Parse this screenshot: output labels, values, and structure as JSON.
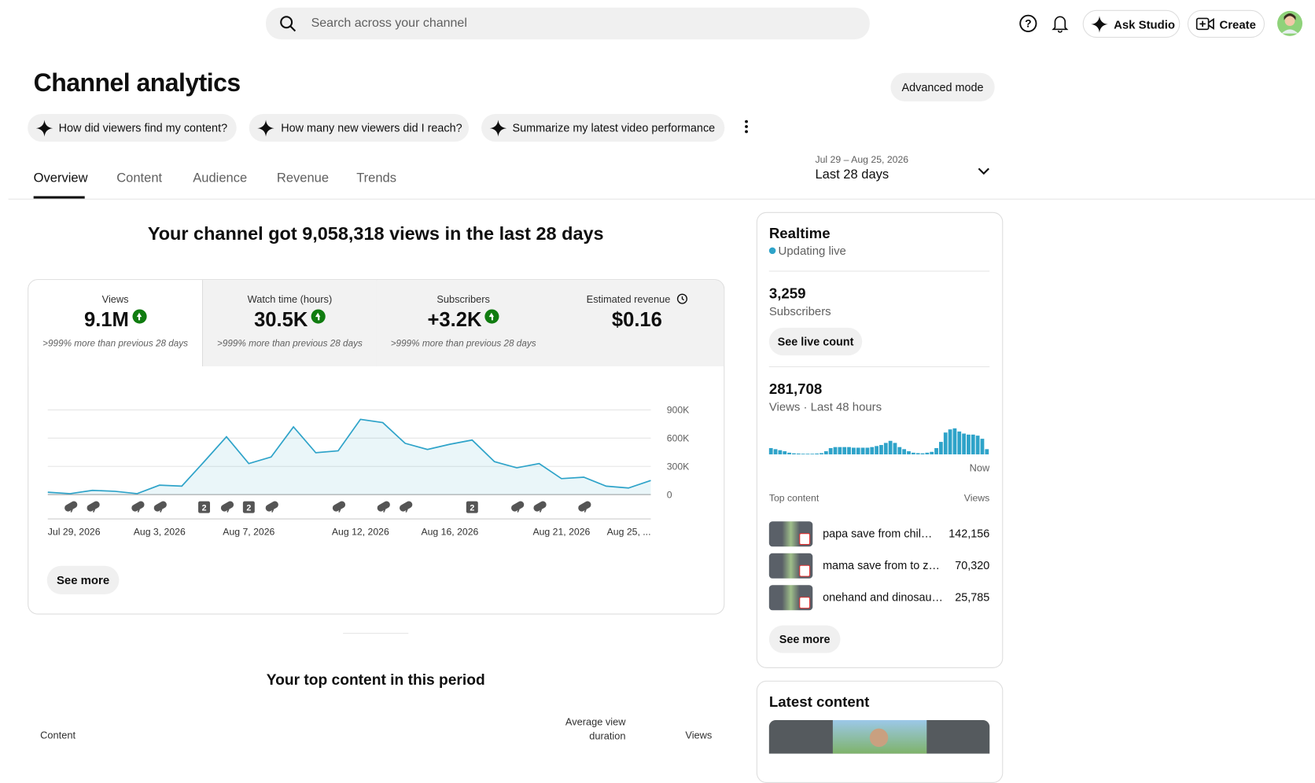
{
  "header": {
    "search_placeholder": "Search across your channel",
    "ask_studio": "Ask Studio",
    "create": "Create"
  },
  "page": {
    "title": "Channel analytics",
    "advanced_mode": "Advanced mode",
    "prompts": [
      "How did viewers find my content?",
      "How many new viewers did I reach?",
      "Summarize my latest video performance"
    ],
    "tabs": [
      "Overview",
      "Content",
      "Audience",
      "Revenue",
      "Trends"
    ],
    "date_range": {
      "dates": "Jul 29 – Aug 25, 2026",
      "label": "Last 28 days"
    }
  },
  "overview": {
    "headline": "Your channel got 9,058,318 views in the last 28 days",
    "metrics": [
      {
        "label": "Views",
        "value": "9.1M",
        "change": ">999% more than previous 28 days"
      },
      {
        "label": "Watch time (hours)",
        "value": "30.5K",
        "change": ">999% more than previous 28 days"
      },
      {
        "label": "Subscribers",
        "value": "+3.2K",
        "change": ">999% more than previous 28 days"
      },
      {
        "label": "Estimated revenue",
        "value": "$0.16"
      }
    ],
    "see_more": "See more",
    "top_content_title": "Your top content in this period",
    "table_headers": [
      "Content",
      "Average view duration",
      "Views"
    ]
  },
  "chart_data": {
    "type": "line",
    "color": "#2ea3c9",
    "x": [
      "Jul 29, 2026",
      null,
      null,
      null,
      null,
      "Aug 3, 2026",
      null,
      null,
      null,
      "Aug 7, 2026",
      null,
      null,
      null,
      null,
      "Aug 12, 2026",
      null,
      null,
      null,
      "Aug 16, 2026",
      null,
      null,
      null,
      null,
      "Aug 21, 2026",
      null,
      null,
      null,
      "Aug 25, ..."
    ],
    "values": [
      25000,
      10000,
      45000,
      35000,
      10000,
      100000,
      90000,
      350000,
      615000,
      330000,
      400000,
      720000,
      445000,
      465000,
      800000,
      765000,
      545000,
      480000,
      535000,
      580000,
      350000,
      285000,
      330000,
      170000,
      185000,
      90000,
      70000,
      150000
    ],
    "events": [
      null,
      1,
      1,
      null,
      1,
      1,
      null,
      2,
      1,
      2,
      1,
      null,
      null,
      1,
      null,
      1,
      1,
      null,
      null,
      2,
      null,
      1,
      1,
      null,
      1,
      null,
      null,
      null
    ],
    "ylim": [
      0,
      900000
    ],
    "yticks": [
      0,
      {
        "value": 300000,
        "label": "300K"
      },
      {
        "value": 600000,
        "label": "600K"
      },
      {
        "value": 900000,
        "label": "900K"
      }
    ],
    "grid": true
  },
  "realtime": {
    "title": "Realtime",
    "status": "Updating live",
    "subscribers": "3,259",
    "subscribers_label": "Subscribers",
    "see_live_count": "See live count",
    "views": "281,708",
    "views_label": "Views · Last 48 hours",
    "now": "Now",
    "top_content_label": "Top content",
    "views_header": "Views",
    "top_content": [
      {
        "title": "papa save from chil…",
        "views": "142,156"
      },
      {
        "title": "mama save from to z…",
        "views": "70,320"
      },
      {
        "title": "onehand and dinosau…",
        "views": "25,785"
      }
    ],
    "see_more": "See more",
    "color": "#2ea3c9",
    "hourly_views": [
      3000,
      2500,
      2000,
      1500,
      800,
      500,
      400,
      300,
      300,
      300,
      400,
      600,
      1500,
      3000,
      3500,
      3500,
      3500,
      3500,
      3200,
      3200,
      3200,
      3200,
      3500,
      4000,
      4500,
      5500,
      6500,
      5500,
      3500,
      2500,
      1500,
      800,
      600,
      500,
      800,
      1200,
      3000,
      6000,
      10500,
      12000,
      12500,
      11000,
      10000,
      9500,
      9500,
      9000,
      7500,
      2500
    ]
  },
  "latest_content": {
    "title": "Latest content"
  }
}
